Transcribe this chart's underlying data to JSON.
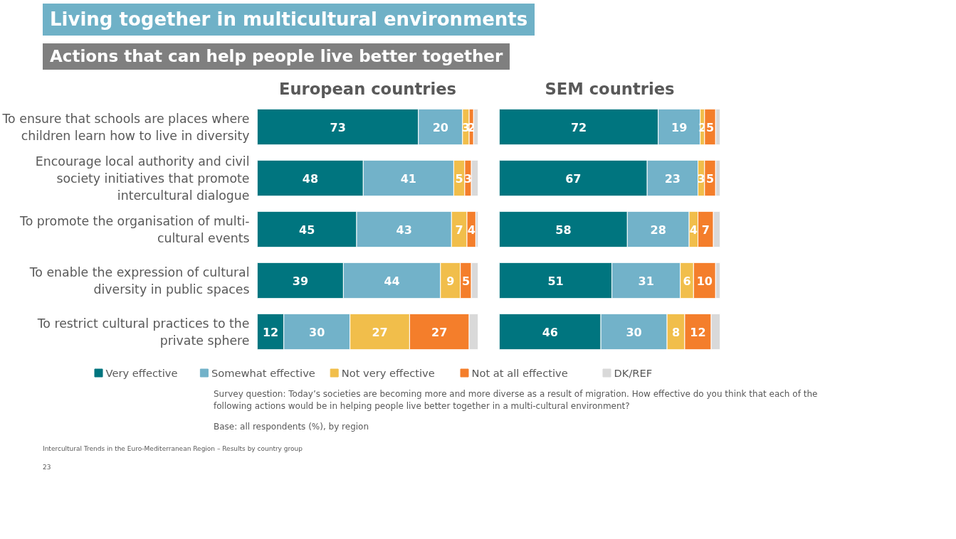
{
  "chart_data": [
    {
      "type": "bar",
      "orientation": "horizontal",
      "stacked": true,
      "title": "European countries",
      "categories": [
        "To ensure that schools are places where children learn how to live in diversity",
        "Encourage local authority and civil society initiatives that promote intercultural dialogue",
        "To promote the organisation of multi-cultural events",
        "To enable the expression of cultural diversity in public spaces",
        "To restrict cultural practices to the private sphere"
      ],
      "xlim": [
        0,
        100
      ],
      "tick_labels": "y",
      "legend": "bottom",
      "grid": false,
      "series": [
        {
          "name": "Very effective",
          "color": "#00757f",
          "values": [
            73,
            48,
            45,
            39,
            12
          ],
          "value_labels": [
            "73",
            "48",
            "45",
            "39",
            "12"
          ]
        },
        {
          "name": "Somewhat effective",
          "color": "#72b2c9",
          "values": [
            20,
            41,
            43,
            44,
            30
          ],
          "value_labels": [
            "20",
            "41",
            "43",
            "44",
            "30"
          ]
        },
        {
          "name": "Not very effective",
          "color": "#f1be4b",
          "values": [
            3,
            5,
            7,
            9,
            27
          ],
          "value_labels": [
            "3",
            "5",
            "7",
            "9",
            "27"
          ]
        },
        {
          "name": "Not at all effective",
          "color": "#f47e2b",
          "values": [
            2,
            3,
            4,
            5,
            27
          ],
          "value_labels": [
            "2",
            "3",
            "4",
            "5",
            "27"
          ]
        },
        {
          "name": "DK/REF",
          "color": "#d9d9d9",
          "values": [
            2,
            3,
            1,
            3,
            4
          ],
          "value_labels": [
            null,
            null,
            null,
            null,
            null
          ]
        }
      ]
    },
    {
      "type": "bar",
      "orientation": "horizontal",
      "stacked": true,
      "title": "SEM countries",
      "categories": [
        "To ensure that schools are places where children learn how to live in diversity",
        "Encourage local authority and civil society initiatives that promote intercultural dialogue",
        "To promote the organisation of multi-cultural events",
        "To enable the expression of cultural diversity in public spaces",
        "To restrict cultural practices to the private sphere"
      ],
      "xlim": [
        0,
        100
      ],
      "tick_labels": false,
      "grid": false,
      "series": [
        {
          "color": "#00757f",
          "values": [
            72,
            67,
            58,
            51,
            46
          ],
          "value_labels": [
            "72",
            "67",
            "58",
            "51",
            "46"
          ]
        },
        {
          "color": "#72b2c9",
          "values": [
            19,
            23,
            28,
            31,
            30
          ],
          "value_labels": [
            "19",
            "23",
            "28",
            "31",
            "30"
          ]
        },
        {
          "color": "#f1be4b",
          "values": [
            2,
            3,
            4,
            6,
            8
          ],
          "value_labels": [
            "2",
            "3",
            "4",
            "6",
            "8"
          ]
        },
        {
          "color": "#f47e2b",
          "values": [
            5,
            5,
            7,
            10,
            12
          ],
          "value_labels": [
            "5",
            "5",
            "7",
            "10",
            "12"
          ]
        },
        {
          "color": "#d9d9d9",
          "values": [
            2,
            2,
            3,
            2,
            4
          ],
          "value_labels": [
            null,
            null,
            null,
            null,
            null
          ]
        }
      ]
    },
    {
      "type": "other",
      "title": "Living together in multicultural environments",
      "subtitle": "Actions that can help people live better together",
      "annotations": [
        "Survey question: Today’s societies are becoming more and more diverse as a result of migration. How effective do you think that each of the following actions would be in helping people live better together in a multi-cultural environment?",
        "Base: all respondents (%), by region",
        "Intercultural Trends in the Euro-Mediterranean Region –  Results by country group",
        "23"
      ]
    }
  ]
}
